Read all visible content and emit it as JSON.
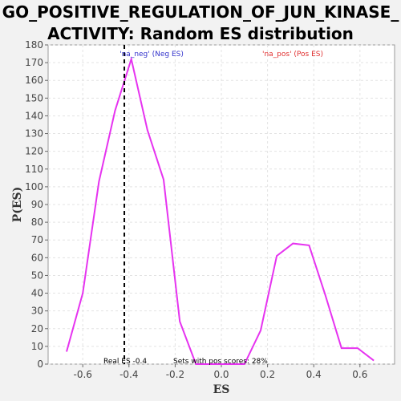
{
  "title_line1": "GO_POSITIVE_REGULATION_OF_JUN_KINASE_",
  "title_line2": "ACTIVITY: Random ES distribution",
  "chart_data": {
    "type": "line",
    "xlabel": "ES",
    "ylabel": "P(ES)",
    "xlim": [
      -0.75,
      0.75
    ],
    "ylim": [
      0,
      180
    ],
    "x_ticks": [
      -0.6,
      -0.4,
      -0.2,
      0.0,
      0.2,
      0.4,
      0.6
    ],
    "x_tick_labels": [
      "-0.6",
      "-0.4",
      "-0.2",
      "0.0",
      "0.2",
      "0.4",
      "0.6"
    ],
    "y_ticks": [
      0,
      10,
      20,
      30,
      40,
      50,
      60,
      70,
      80,
      90,
      100,
      110,
      120,
      130,
      140,
      150,
      160,
      170,
      180
    ],
    "grid": true,
    "series": [
      {
        "color": "#e633f0",
        "x": [
          -0.67,
          -0.6,
          -0.53,
          -0.46,
          -0.39,
          -0.32,
          -0.25,
          -0.18,
          -0.11,
          -0.04,
          0.03,
          0.1,
          0.17,
          0.24,
          0.31,
          0.38,
          0.45,
          0.52,
          0.59,
          0.66
        ],
        "y": [
          7,
          40,
          103,
          143,
          172,
          132,
          104,
          24,
          0,
          0,
          0,
          0,
          19,
          61,
          68,
          67,
          39,
          9,
          9,
          2
        ]
      }
    ],
    "real_es": -0.42,
    "annotations": {
      "neg_label": "'na_neg' (Neg ES)",
      "pos_label": "'na_pos' (Pos ES)",
      "real_es_label": "Real ES -0.4",
      "pos_scores_label": "Sets with pos scores: 28%"
    },
    "colors": {
      "line": "#e633f0",
      "neg": "#3333cc",
      "pos": "#e03030",
      "plot_bg": "#ffffff",
      "page_bg": "#f2f2f2"
    }
  }
}
